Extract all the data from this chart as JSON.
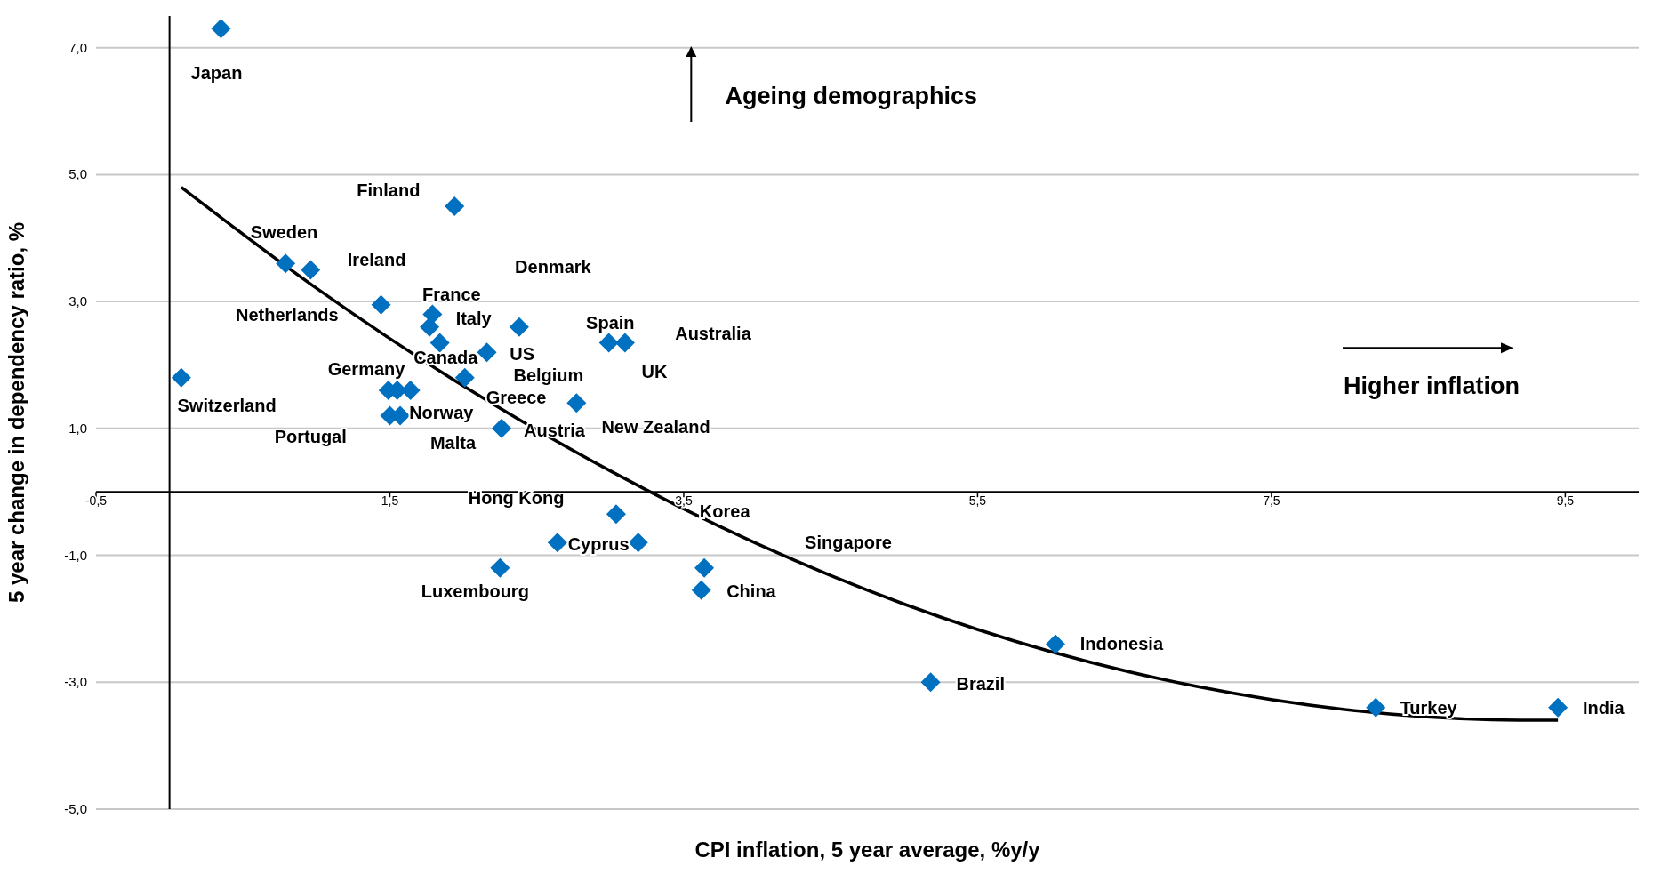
{
  "chart_data": {
    "type": "scatter",
    "xlabel": "CPI inflation, 5 year average, %y/y",
    "ylabel": "5 year change in dependency ratio, %",
    "xlim": [
      -0.5,
      10
    ],
    "ylim": [
      -5,
      7.5
    ],
    "xticks": [
      {
        "value": -0.5,
        "label": "-0,5"
      },
      {
        "value": 1.5,
        "label": "1,5"
      },
      {
        "value": 3.5,
        "label": "3,5"
      },
      {
        "value": 5.5,
        "label": "5,5"
      },
      {
        "value": 7.5,
        "label": "7,5"
      },
      {
        "value": 9.5,
        "label": "9,5"
      }
    ],
    "yticks": [
      {
        "value": -5,
        "label": "-5,0"
      },
      {
        "value": -3,
        "label": "-3,0"
      },
      {
        "value": -1,
        "label": "-1,0"
      },
      {
        "value": 1,
        "label": "1,0"
      },
      {
        "value": 3,
        "label": "3,0"
      },
      {
        "value": 5,
        "label": "5,0"
      },
      {
        "value": 7,
        "label": "7,0"
      }
    ],
    "grid": "y",
    "marker": "diamond",
    "series": [
      {
        "color": "#0070c0",
        "x": [
          0.35,
          1.94,
          0.79,
          0.96,
          1.44,
          1.79,
          1.77,
          1.84,
          2.38,
          2.16,
          2.01,
          0.08,
          1.49,
          1.55,
          1.64,
          1.5,
          1.57,
          2.77,
          2.99,
          3.1,
          2.26,
          3.04,
          2.64,
          3.19,
          3.64,
          2.25,
          3.62,
          6.03,
          5.18,
          8.21,
          9.45
        ],
        "values": [
          7.3,
          4.5,
          3.6,
          3.5,
          2.95,
          2.8,
          2.6,
          2.35,
          2.6,
          2.2,
          1.8,
          1.8,
          1.6,
          1.6,
          1.6,
          1.2,
          1.2,
          1.4,
          2.35,
          2.35,
          1.0,
          -0.35,
          -0.8,
          -0.8,
          -1.2,
          -1.2,
          -1.55,
          -2.4,
          -3.0,
          -3.4,
          -3.4
        ]
      },
      {
        "type": "line",
        "marker": "none",
        "color": "#000000",
        "x": [
          0.08,
          1,
          2,
          3,
          4,
          5,
          6,
          7,
          8,
          9,
          9.45
        ],
        "values": [
          4.8,
          3.21,
          1.67,
          0.33,
          -0.82,
          -1.77,
          -2.52,
          -3.07,
          -3.43,
          -3.59,
          -3.6
        ]
      }
    ],
    "annotations": [
      "Japan",
      "Finland",
      "Sweden",
      "Ireland",
      "Denmark",
      "France",
      "Netherlands",
      "Italy",
      "Spain",
      "Australia",
      "US",
      "Canada",
      "Germany",
      "UK",
      "Belgium",
      "Greece",
      "Switzerland",
      "Norway",
      "New Zealand",
      "Austria",
      "Portugal",
      "Malta",
      "Hong Kong",
      "Korea",
      "Cyprus",
      "Singapore",
      "Luxembourg",
      "China",
      "Indonesia",
      "Brazil",
      "Turkey",
      "India",
      "Ageing demographics",
      "Higher inflation"
    ]
  }
}
